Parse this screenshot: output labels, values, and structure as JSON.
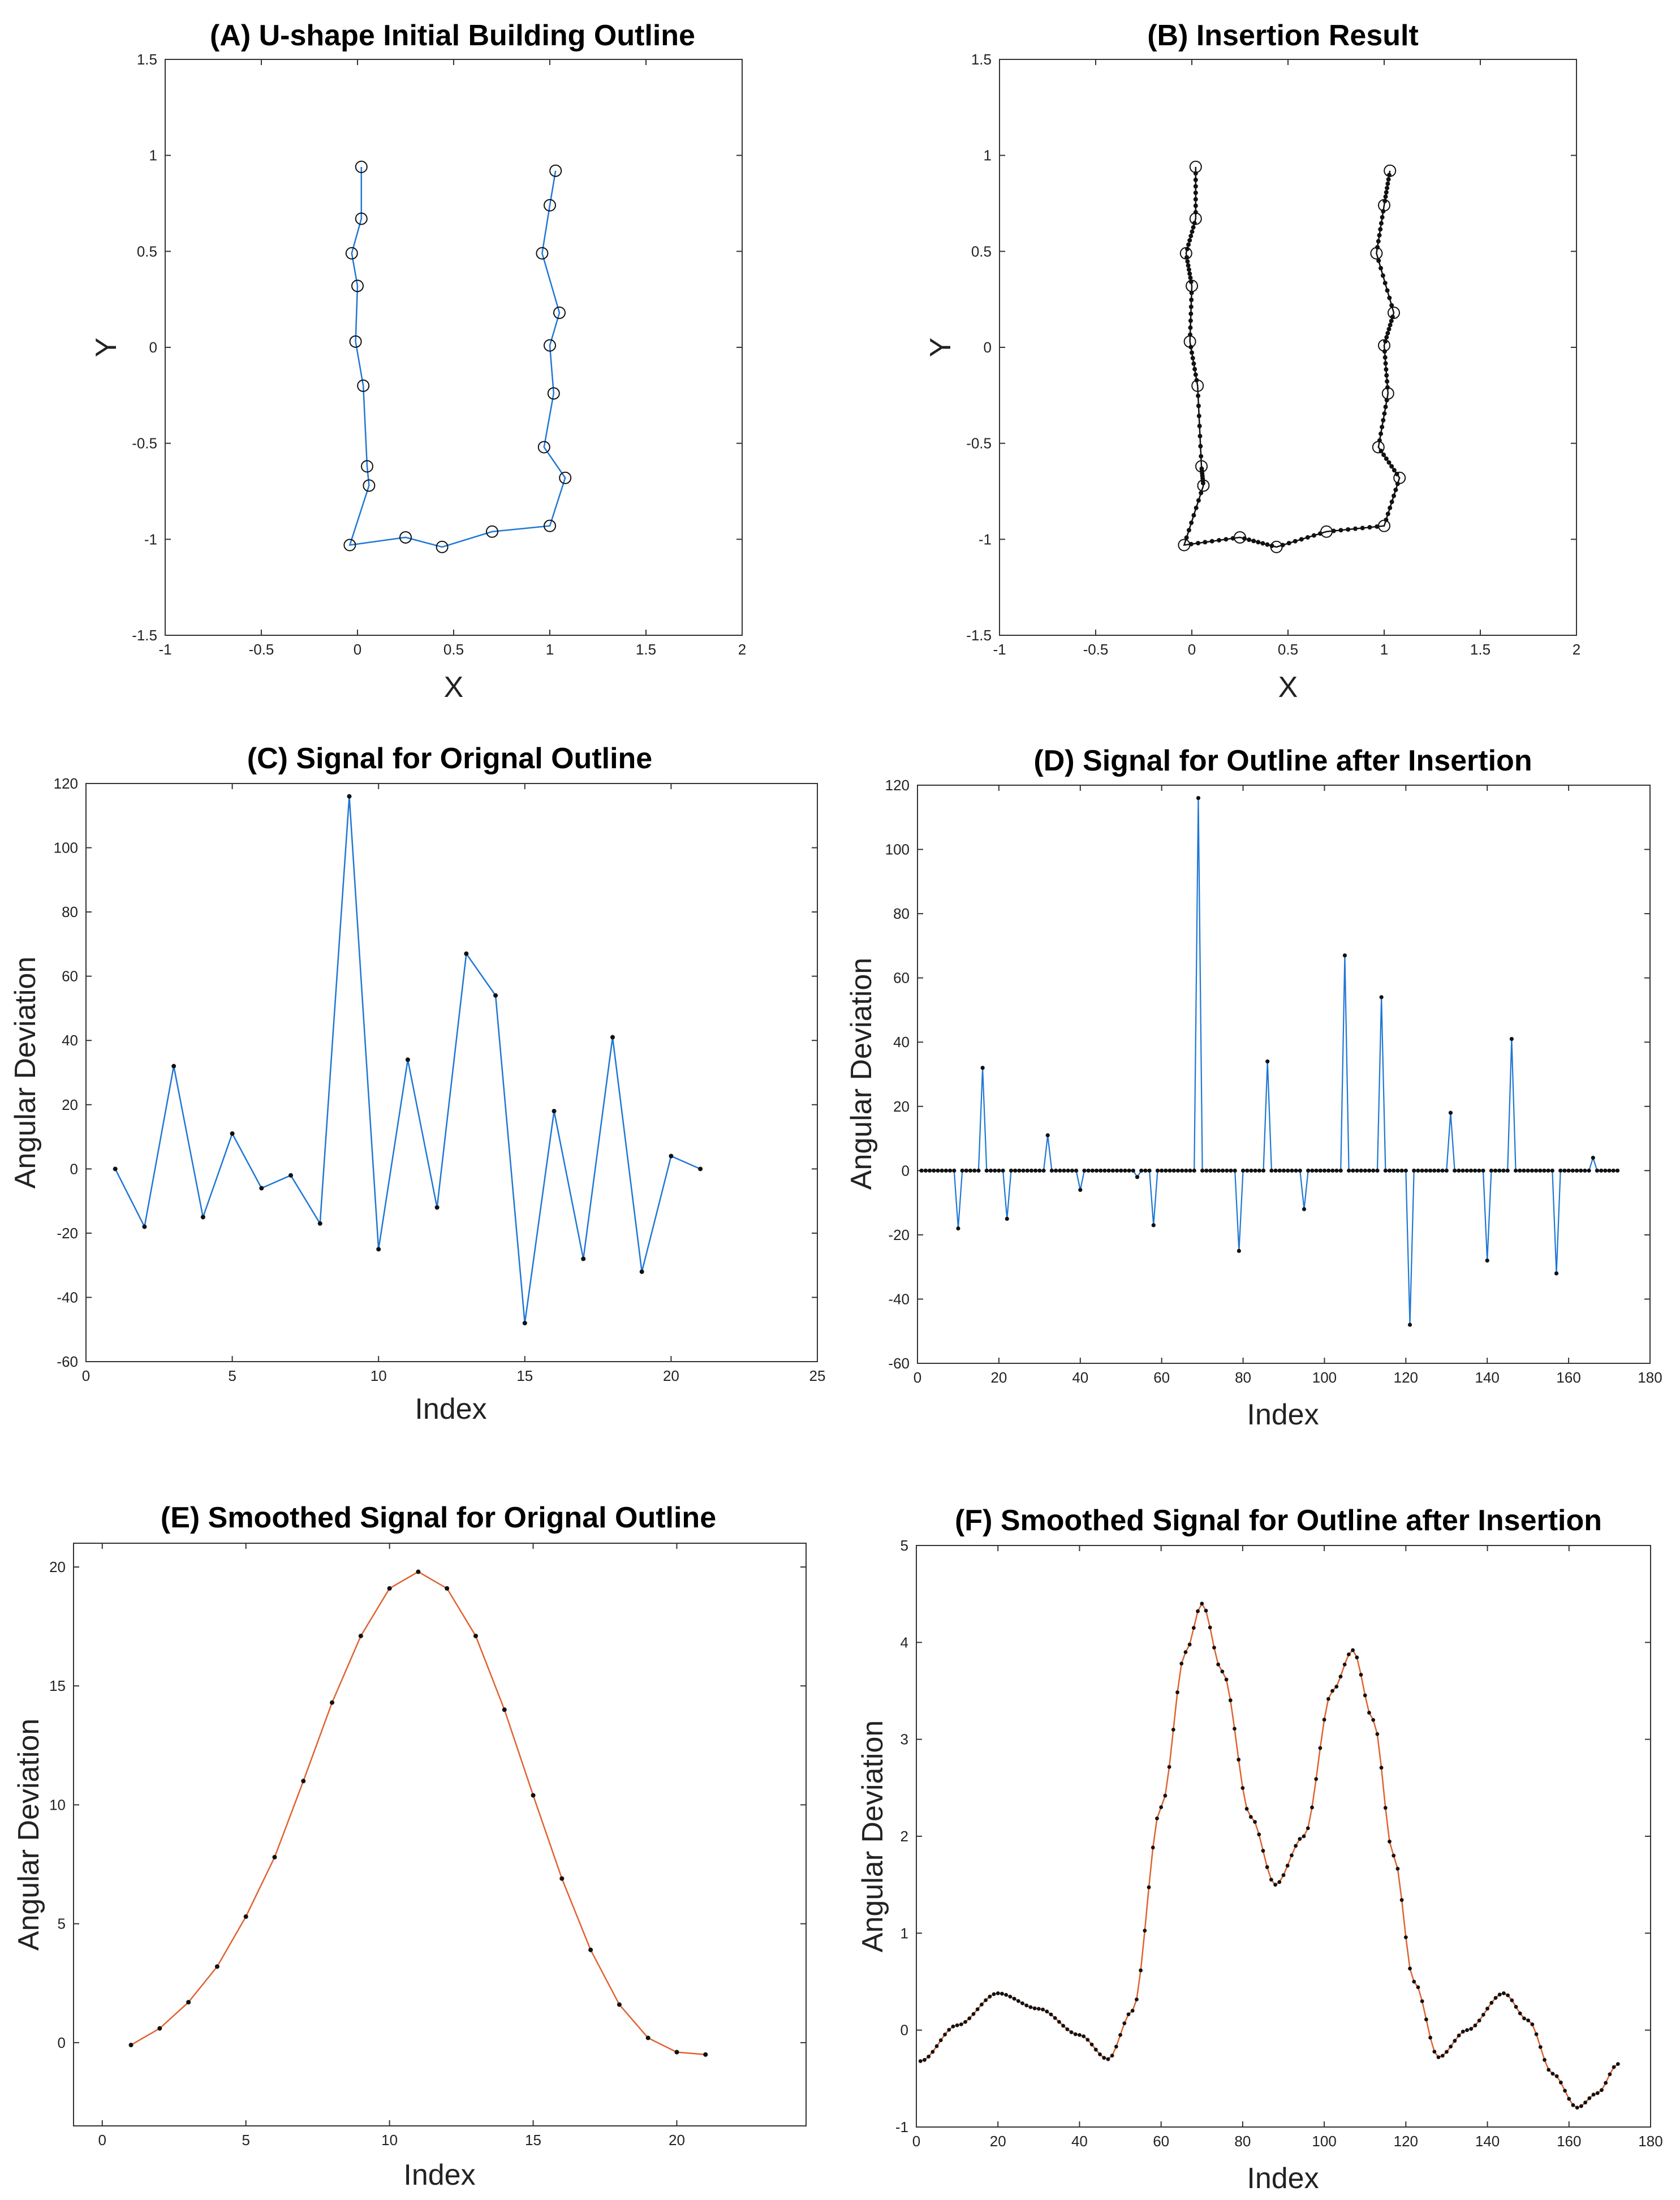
{
  "chart_data": [
    {
      "id": "A",
      "type": "scatter",
      "title": "(A) U-shape Initial Building Outline",
      "xlabel": "X",
      "ylabel": "Y",
      "xlim": [
        -1,
        2
      ],
      "ylim": [
        -1.5,
        1.5
      ],
      "xticks": [
        "-1",
        "-0.5",
        "0",
        "0.5",
        "1",
        "1.5",
        "2"
      ],
      "yticks": [
        "-1.5",
        "-1",
        "-0.5",
        "0",
        "0.5",
        "1",
        "1.5"
      ],
      "line_color": "#1f77d4",
      "marker": "circle",
      "vertices": [
        [
          0.02,
          0.94
        ],
        [
          0.02,
          0.67
        ],
        [
          -0.03,
          0.49
        ],
        [
          0.0,
          0.32
        ],
        [
          -0.01,
          0.03
        ],
        [
          0.03,
          -0.2
        ],
        [
          0.05,
          -0.62
        ],
        [
          0.06,
          -0.72
        ],
        [
          -0.04,
          -1.03
        ],
        [
          0.25,
          -0.99
        ],
        [
          0.44,
          -1.04
        ],
        [
          0.7,
          -0.96
        ],
        [
          1.0,
          -0.93
        ],
        [
          1.08,
          -0.68
        ],
        [
          0.97,
          -0.52
        ],
        [
          1.02,
          -0.24
        ],
        [
          1.0,
          0.01
        ],
        [
          1.05,
          0.18
        ],
        [
          0.96,
          0.49
        ],
        [
          1.0,
          0.74
        ],
        [
          1.03,
          0.92
        ]
      ]
    },
    {
      "id": "B",
      "type": "scatter",
      "title": "(B) Insertion Result",
      "xlabel": "X",
      "ylabel": "Y",
      "xlim": [
        -1,
        2
      ],
      "ylim": [
        -1.5,
        1.5
      ],
      "xticks": [
        "-1",
        "-0.5",
        "0",
        "0.5",
        "1",
        "1.5",
        "2"
      ],
      "yticks": [
        "-1.5",
        "-1",
        "-0.5",
        "0",
        "0.5",
        "1",
        "1.5"
      ],
      "line_color": "#111111",
      "marker": "circle",
      "inserted_points_between_vertices": 8,
      "vertices": [
        [
          0.02,
          0.94
        ],
        [
          0.02,
          0.67
        ],
        [
          -0.03,
          0.49
        ],
        [
          0.0,
          0.32
        ],
        [
          -0.01,
          0.03
        ],
        [
          0.03,
          -0.2
        ],
        [
          0.05,
          -0.62
        ],
        [
          0.06,
          -0.72
        ],
        [
          -0.04,
          -1.03
        ],
        [
          0.25,
          -0.99
        ],
        [
          0.44,
          -1.04
        ],
        [
          0.7,
          -0.96
        ],
        [
          1.0,
          -0.93
        ],
        [
          1.08,
          -0.68
        ],
        [
          0.97,
          -0.52
        ],
        [
          1.02,
          -0.24
        ],
        [
          1.0,
          0.01
        ],
        [
          1.05,
          0.18
        ],
        [
          0.96,
          0.49
        ],
        [
          1.0,
          0.74
        ],
        [
          1.03,
          0.92
        ]
      ]
    },
    {
      "id": "C",
      "type": "line",
      "title": "(C) Signal for Orignal Outline",
      "xlabel": "Index",
      "ylabel": "Angular Deviation",
      "xlim": [
        0,
        25
      ],
      "ylim": [
        -60,
        120
      ],
      "xticks": [
        "0",
        "5",
        "10",
        "15",
        "20",
        "25"
      ],
      "yticks": [
        "-60",
        "-40",
        "-20",
        "0",
        "20",
        "40",
        "60",
        "80",
        "100",
        "120"
      ],
      "line_color": "#1f77d4",
      "x": [
        1,
        2,
        3,
        4,
        5,
        6,
        7,
        8,
        9,
        10,
        11,
        12,
        13,
        14,
        15,
        16,
        17,
        18,
        19,
        20,
        21
      ],
      "values": [
        0,
        -18,
        32,
        -15,
        11,
        -6,
        -2,
        -17,
        116,
        -25,
        34,
        -12,
        67,
        54,
        -48,
        18,
        -28,
        41,
        -32,
        4,
        0
      ]
    },
    {
      "id": "D",
      "type": "line",
      "title": "(D) Signal for Outline after Insertion",
      "xlabel": "Index",
      "ylabel": "Angular Deviation",
      "xlim": [
        0,
        180
      ],
      "ylim": [
        -60,
        120
      ],
      "xticks": [
        "0",
        "20",
        "40",
        "60",
        "80",
        "100",
        "120",
        "140",
        "160",
        "180"
      ],
      "yticks": [
        "-60",
        "-40",
        "-20",
        "0",
        "20",
        "40",
        "60",
        "80",
        "100",
        "120"
      ],
      "line_color": "#1f77d4",
      "n_points": 172,
      "spikes": [
        {
          "x": 10,
          "value": -18
        },
        {
          "x": 16,
          "value": 32
        },
        {
          "x": 22,
          "value": -15
        },
        {
          "x": 32,
          "value": 11
        },
        {
          "x": 40,
          "value": -6
        },
        {
          "x": 54,
          "value": -2
        },
        {
          "x": 58,
          "value": -17
        },
        {
          "x": 69,
          "value": 116
        },
        {
          "x": 79,
          "value": -25
        },
        {
          "x": 86,
          "value": 34
        },
        {
          "x": 95,
          "value": -12
        },
        {
          "x": 105,
          "value": 67
        },
        {
          "x": 114,
          "value": 54
        },
        {
          "x": 121,
          "value": -48
        },
        {
          "x": 131,
          "value": 18
        },
        {
          "x": 140,
          "value": -28
        },
        {
          "x": 146,
          "value": 41
        },
        {
          "x": 157,
          "value": -32
        },
        {
          "x": 166,
          "value": 4
        }
      ]
    },
    {
      "id": "E",
      "type": "line",
      "title": "(E) Smoothed Signal for Orignal Outline",
      "xlabel": "Index",
      "ylabel": "Angular Deviation",
      "xlim": [
        -1,
        24.5
      ],
      "ylim": [
        -3.5,
        21
      ],
      "xticks": [
        "0",
        "5",
        "10",
        "15",
        "20"
      ],
      "ytick_values": [
        0,
        5,
        10,
        15,
        20
      ],
      "xtick_values": [
        0,
        5,
        10,
        15,
        20
      ],
      "yticks": [
        "0",
        "5",
        "10",
        "15",
        "20"
      ],
      "line_color": "#e0622f",
      "x": [
        1,
        2,
        3,
        4,
        5,
        6,
        7,
        8,
        9,
        10,
        11,
        12,
        13,
        14,
        15,
        16,
        17,
        18,
        19,
        20,
        21
      ],
      "values": [
        -0.1,
        0.6,
        1.7,
        3.2,
        5.3,
        7.8,
        11.0,
        14.3,
        17.1,
        19.1,
        19.8,
        19.1,
        17.1,
        14.0,
        10.4,
        6.9,
        3.9,
        1.6,
        0.2,
        -0.4,
        -0.5
      ]
    },
    {
      "id": "F",
      "type": "line",
      "title": "(F) Smoothed Signal for Outline after Insertion",
      "xlabel": "Index",
      "ylabel": "Angular Deviation",
      "xlim": [
        0,
        180
      ],
      "ylim": [
        -1,
        5
      ],
      "xticks": [
        "0",
        "20",
        "40",
        "60",
        "80",
        "100",
        "120",
        "140",
        "160",
        "180"
      ],
      "yticks": [
        "-1",
        "0",
        "1",
        "2",
        "3",
        "4",
        "5"
      ],
      "line_color": "#e0622f",
      "n_points": 172,
      "keypoints": [
        [
          1,
          -0.32
        ],
        [
          10,
          0.05
        ],
        [
          20,
          0.38
        ],
        [
          30,
          0.22
        ],
        [
          40,
          -0.05
        ],
        [
          47,
          -0.3
        ],
        [
          53,
          0.2
        ],
        [
          60,
          2.3
        ],
        [
          66,
          3.9
        ],
        [
          70,
          4.4
        ],
        [
          75,
          3.7
        ],
        [
          82,
          2.2
        ],
        [
          88,
          1.5
        ],
        [
          95,
          2.0
        ],
        [
          102,
          3.5
        ],
        [
          107,
          3.92
        ],
        [
          112,
          3.2
        ],
        [
          117,
          1.8
        ],
        [
          122,
          0.5
        ],
        [
          128,
          -0.28
        ],
        [
          135,
          0.0
        ],
        [
          144,
          0.38
        ],
        [
          150,
          0.1
        ],
        [
          156,
          -0.45
        ],
        [
          162,
          -0.8
        ],
        [
          167,
          -0.65
        ],
        [
          172,
          -0.35
        ]
      ]
    }
  ]
}
